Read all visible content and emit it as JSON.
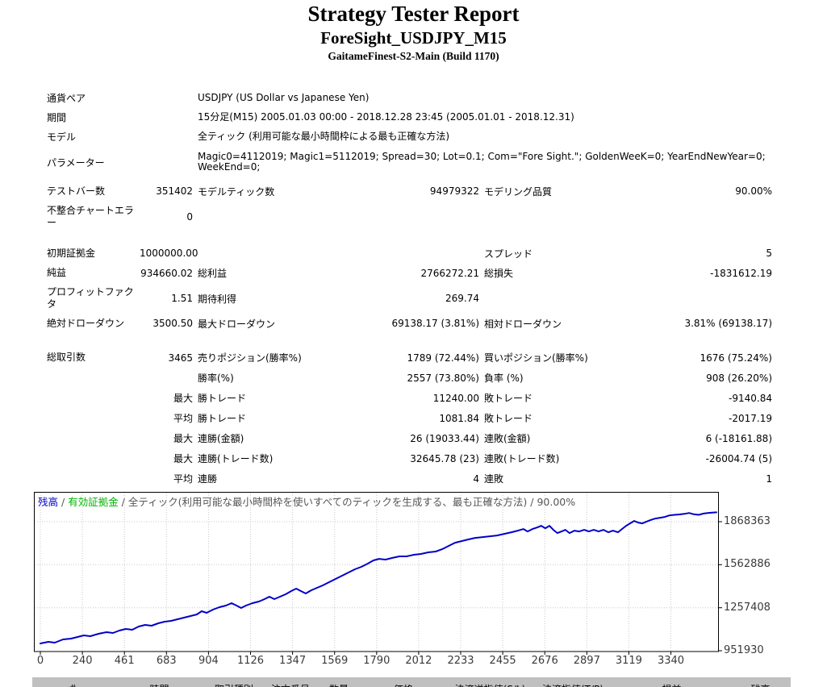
{
  "header": {
    "title": "Strategy Tester Report",
    "symbol": "ForeSight_USDJPY_M15",
    "server": "GaitameFinest-S2-Main (Build 1170)"
  },
  "info": {
    "rows": [
      {
        "label": "通貨ペア",
        "value": "USDJPY (US Dollar vs Japanese Yen)"
      },
      {
        "label": "期間",
        "value": "15分足(M15) 2005.01.03 00:00 - 2018.12.28 23:45 (2005.01.01 - 2018.12.31)"
      },
      {
        "label": "モデル",
        "value": "全ティック (利用可能な最小時間枠による最も正確な方法)"
      },
      {
        "label": "パラメーター",
        "value": "Magic0=4112019; Magic1=5112019; Spread=30; Lot=0.1; Com=\"Fore Sight.\"; GoldenWeeK=0; YearEndNewYear=0; WeekEnd=0;"
      }
    ]
  },
  "stats": {
    "model_rows": [
      [
        "テストバー数",
        "351402",
        "モデルティック数",
        "94979322",
        "モデリング品質",
        "90.00%"
      ],
      [
        "不整合チャートエラー",
        "0",
        "",
        "",
        "",
        ""
      ]
    ],
    "money_rows": [
      [
        "初期証拠金",
        "1000000.00",
        "",
        "",
        "スプレッド",
        "5"
      ],
      [
        "純益",
        "934660.02",
        "総利益",
        "2766272.21",
        "総損失",
        "-1831612.19"
      ],
      [
        "プロフィットファクタ",
        "1.51",
        "期待利得",
        "269.74",
        "",
        ""
      ],
      [
        "絶対ドローダウン",
        "3500.50",
        "最大ドローダウン",
        "69138.17 (3.81%)",
        "相対ドローダウン",
        "3.81% (69138.17)"
      ]
    ],
    "trade_rows": [
      [
        "総取引数",
        "3465",
        "売りポジション(勝率%)",
        "1789 (72.44%)",
        "買いポジション(勝率%)",
        "1676 (75.24%)"
      ],
      [
        "",
        "",
        "勝率(%)",
        "2557 (73.80%)",
        "負率 (%)",
        "908 (26.20%)"
      ],
      [
        "",
        "最大",
        "勝トレード",
        "11240.00",
        "敗トレード",
        "-9140.84"
      ],
      [
        "",
        "平均",
        "勝トレード",
        "1081.84",
        "敗トレード",
        "-2017.19"
      ],
      [
        "",
        "最大",
        "連勝(金額)",
        "26 (19033.44)",
        "連敗(金額)",
        "6 (-18161.88)"
      ],
      [
        "",
        "最大",
        "連勝(トレード数)",
        "32645.78 (23)",
        "連敗(トレード数)",
        "-26004.74 (5)"
      ],
      [
        "",
        "平均",
        "連勝",
        "4",
        "連敗",
        "1"
      ]
    ]
  },
  "chart_data": {
    "type": "line",
    "legend": {
      "balance_label": "残高",
      "equity_label": "有効証拠金",
      "separator": " / ",
      "model_note": "全ティック(利用可能な最小時間枠を使いすべてのティックを生成する、最も正確な方法)",
      "quality": "90.00%"
    },
    "xlabel": "",
    "ylabel": "",
    "x_ticks": [
      0,
      240,
      461,
      683,
      904,
      1126,
      1347,
      1569,
      1790,
      2012,
      2233,
      2455,
      2676,
      2897,
      3119,
      3340
    ],
    "y_ticks": [
      1868363,
      1562886,
      1257408,
      951930
    ],
    "grid": true,
    "legend_position": "top-left-inside",
    "colors": {
      "balance": "#0000C8",
      "equity": "#00B400",
      "grid": "#C8C8C8",
      "border": "#000000",
      "axis_text": "#3A3A3A",
      "note_text": "#555555"
    },
    "series": [
      {
        "name": "残高",
        "color": "#0000C8",
        "points": [
          [
            0,
            1003500
          ],
          [
            41,
            1014900
          ],
          [
            74,
            1009200
          ],
          [
            116,
            1032100
          ],
          [
            157,
            1037800
          ],
          [
            190,
            1049300
          ],
          [
            223,
            1060700
          ],
          [
            256,
            1055000
          ],
          [
            298,
            1072200
          ],
          [
            339,
            1083600
          ],
          [
            372,
            1077900
          ],
          [
            405,
            1095100
          ],
          [
            438,
            1106500
          ],
          [
            471,
            1100800
          ],
          [
            504,
            1123700
          ],
          [
            537,
            1135200
          ],
          [
            570,
            1129500
          ],
          [
            604,
            1146600
          ],
          [
            637,
            1158100
          ],
          [
            670,
            1163800
          ],
          [
            703,
            1175300
          ],
          [
            736,
            1186700
          ],
          [
            769,
            1198200
          ],
          [
            802,
            1209600
          ],
          [
            827,
            1232500
          ],
          [
            852,
            1221100
          ],
          [
            885,
            1244000
          ],
          [
            918,
            1261200
          ],
          [
            951,
            1272600
          ],
          [
            980,
            1289800
          ],
          [
            1005,
            1272600
          ],
          [
            1029,
            1255500
          ],
          [
            1054,
            1272600
          ],
          [
            1087,
            1289800
          ],
          [
            1120,
            1301200
          ],
          [
            1149,
            1318400
          ],
          [
            1174,
            1335600
          ],
          [
            1199,
            1318400
          ],
          [
            1228,
            1335600
          ],
          [
            1257,
            1352700
          ],
          [
            1286,
            1375600
          ],
          [
            1311,
            1392800
          ],
          [
            1335,
            1375600
          ],
          [
            1360,
            1358400
          ],
          [
            1389,
            1381300
          ],
          [
            1418,
            1398500
          ],
          [
            1447,
            1415700
          ],
          [
            1480,
            1438600
          ],
          [
            1513,
            1461500
          ],
          [
            1546,
            1484400
          ],
          [
            1579,
            1507300
          ],
          [
            1612,
            1530200
          ],
          [
            1645,
            1547400
          ],
          [
            1678,
            1570300
          ],
          [
            1707,
            1593200
          ],
          [
            1736,
            1604600
          ],
          [
            1769,
            1598900
          ],
          [
            1802,
            1610400
          ],
          [
            1840,
            1621800
          ],
          [
            1877,
            1621800
          ],
          [
            1914,
            1633300
          ],
          [
            1951,
            1639000
          ],
          [
            1988,
            1650500
          ],
          [
            2026,
            1656200
          ],
          [
            2059,
            1673300
          ],
          [
            2092,
            1696200
          ],
          [
            2125,
            1719100
          ],
          [
            2158,
            1730600
          ],
          [
            2191,
            1742000
          ],
          [
            2228,
            1753500
          ],
          [
            2266,
            1759200
          ],
          [
            2303,
            1764900
          ],
          [
            2340,
            1770600
          ],
          [
            2377,
            1782100
          ],
          [
            2414,
            1793500
          ],
          [
            2447,
            1805000
          ],
          [
            2476,
            1816400
          ],
          [
            2497,
            1799300
          ],
          [
            2522,
            1816400
          ],
          [
            2547,
            1827900
          ],
          [
            2567,
            1839300
          ],
          [
            2588,
            1822200
          ],
          [
            2609,
            1839300
          ],
          [
            2629,
            1810700
          ],
          [
            2650,
            1787800
          ],
          [
            2671,
            1799300
          ],
          [
            2691,
            1810700
          ],
          [
            2712,
            1787800
          ],
          [
            2737,
            1804900
          ],
          [
            2762,
            1799300
          ],
          [
            2787,
            1810700
          ],
          [
            2811,
            1799300
          ],
          [
            2836,
            1810700
          ],
          [
            2861,
            1799300
          ],
          [
            2886,
            1810700
          ],
          [
            2911,
            1793500
          ],
          [
            2935,
            1805000
          ],
          [
            2960,
            1793500
          ],
          [
            2981,
            1816400
          ],
          [
            3002,
            1839300
          ],
          [
            3022,
            1856500
          ],
          [
            3043,
            1873600
          ],
          [
            3064,
            1862200
          ],
          [
            3085,
            1856500
          ],
          [
            3105,
            1867900
          ],
          [
            3126,
            1879400
          ],
          [
            3151,
            1890800
          ],
          [
            3176,
            1896600
          ],
          [
            3200,
            1902300
          ],
          [
            3225,
            1913700
          ],
          [
            3250,
            1917000
          ],
          [
            3275,
            1920000
          ],
          [
            3300,
            1924000
          ],
          [
            3325,
            1930000
          ],
          [
            3349,
            1921000
          ],
          [
            3374,
            1917000
          ],
          [
            3399,
            1926000
          ],
          [
            3424,
            1931000
          ],
          [
            3449,
            1933500
          ],
          [
            3465,
            1934660
          ]
        ]
      }
    ]
  },
  "trades_table": {
    "columns": [
      "#",
      "時間",
      "取引種別",
      "注文番号",
      "数量",
      "価格",
      "決済逆指値(S/L)",
      "決済指値(T/P)",
      "損益",
      "残高"
    ],
    "header_bg": "#C0C0C0"
  }
}
